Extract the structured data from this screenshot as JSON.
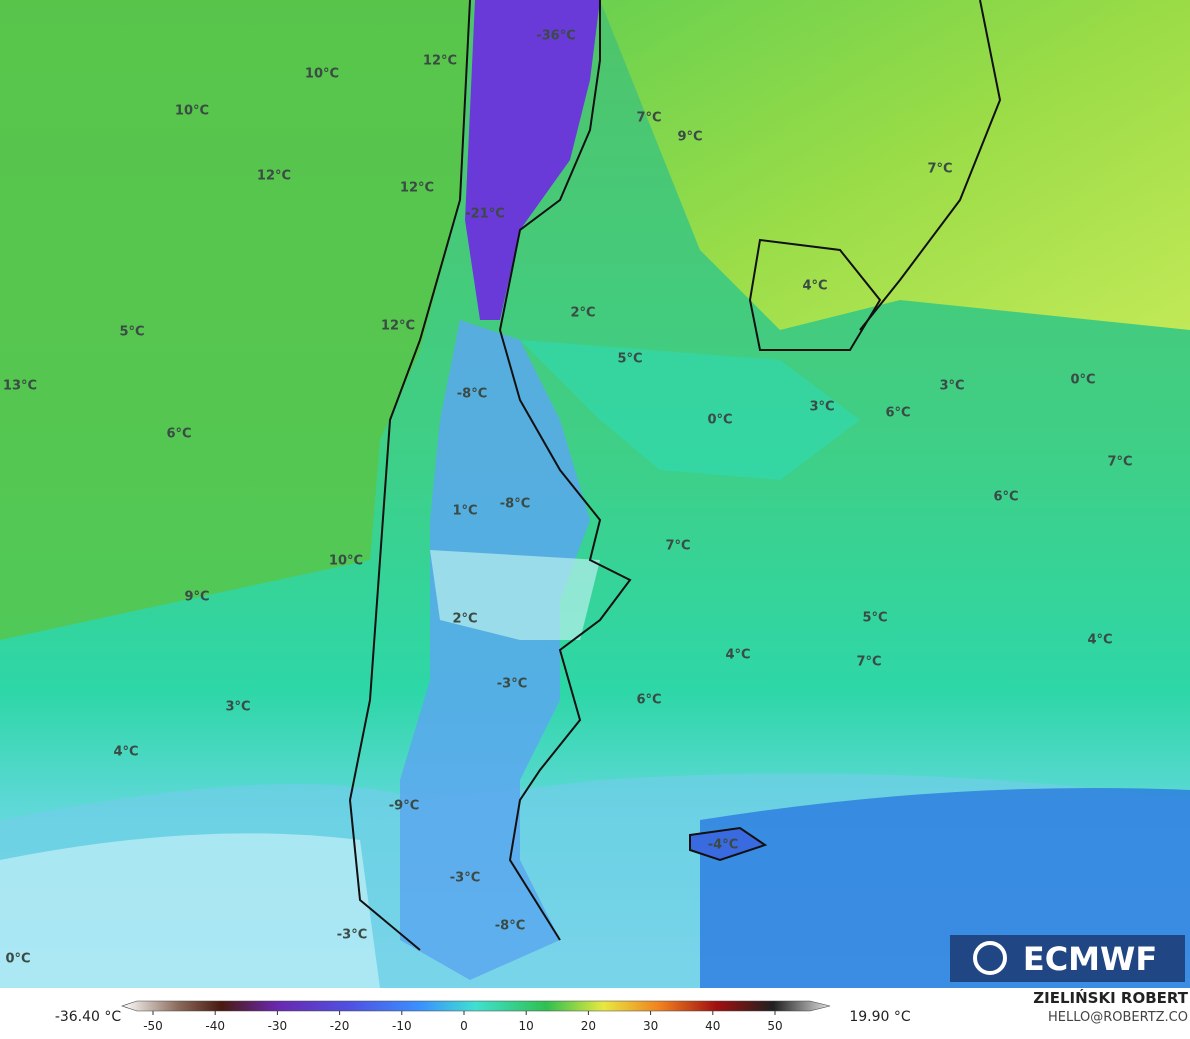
{
  "map": {
    "labels": [
      "-36°C",
      "12°C",
      "10°C",
      "10°C",
      "7°C",
      "9°C",
      "12°C",
      "12°C",
      "7°C",
      "-21°C",
      "4°C",
      "2°C",
      "12°C",
      "5°C",
      "5°C",
      "13°C",
      "3°C",
      "0°C",
      "-8°C",
      "3°C",
      "6°C",
      "0°C",
      "6°C",
      "7°C",
      "6°C",
      "-8°C",
      "1°C",
      "7°C",
      "10°C",
      "9°C",
      "2°C",
      "5°C",
      "4°C",
      "4°C",
      "7°C",
      "-3°C",
      "6°C",
      "3°C",
      "4°C",
      "-9°C",
      "-4°C",
      "-3°C",
      "-8°C",
      "-3°C",
      "0°C"
    ]
  },
  "colorbar": {
    "min_label": "-36.40 °C",
    "max_label": "19.90 °C",
    "ticks": [
      -50,
      -40,
      -30,
      -20,
      -10,
      0,
      10,
      20,
      30,
      40,
      50
    ]
  },
  "logo": "ECMWF",
  "author": "ZIELIŃSKI ROBERT",
  "email": "HELLO@ROBERTZ.CO"
}
